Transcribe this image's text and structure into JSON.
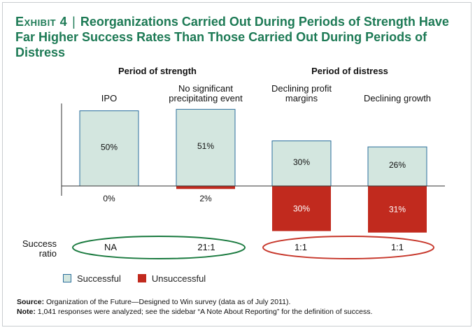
{
  "header": {
    "exhibit": "Exhibit 4",
    "separator": "|",
    "title": "Reorganizations Carried Out During Periods of Strength Have Far Higher Success Rates Than Those Carried Out During Periods of Distress"
  },
  "colors": {
    "title": "#1d7a55",
    "successful_fill": "#d3e6df",
    "successful_stroke": "#2b6f9c",
    "unsuccessful_fill": "#c12a1e",
    "green_ellipse": "#1a7a3f",
    "red_ellipse": "#c7372b"
  },
  "chart_data": {
    "type": "bar",
    "title": "Reorganizations Carried Out During Periods of Strength Have Far Higher Success Rates Than Those Carried Out During Periods of Distress",
    "groups": [
      {
        "label": "Period of strength",
        "categories": [
          "IPO",
          "No significant precipitating event"
        ]
      },
      {
        "label": "Period of distress",
        "categories": [
          "Declining profit margins",
          "Declining growth"
        ]
      }
    ],
    "categories": [
      "IPO",
      "No significant\nprecipitating event",
      "Declining profit\nmargins",
      "Declining growth"
    ],
    "series": [
      {
        "name": "Successful",
        "values": [
          50,
          51,
          30,
          26
        ],
        "labels": [
          "50%",
          "51%",
          "30%",
          "26%"
        ]
      },
      {
        "name": "Unsuccessful",
        "values": [
          0,
          2,
          30,
          31
        ],
        "labels": [
          "0%",
          "2%",
          "30%",
          "31%"
        ]
      }
    ],
    "success_ratio": {
      "label_line1": "Success",
      "label_line2": "ratio",
      "values": [
        "NA",
        "21:1",
        "1:1",
        "1:1"
      ]
    },
    "ylim": [
      -31,
      55
    ],
    "xlabel": "",
    "ylabel": ""
  },
  "legend": {
    "successful": "Successful",
    "unsuccessful": "Unsuccessful"
  },
  "footer": {
    "source_label": "Source:",
    "source_text": "Organization of the Future—Designed to Win survey (data as of July 2011).",
    "note_label": "Note:",
    "note_text": "1,041 responses were analyzed; see the sidebar “A Note About Reporting” for the definition of success."
  }
}
